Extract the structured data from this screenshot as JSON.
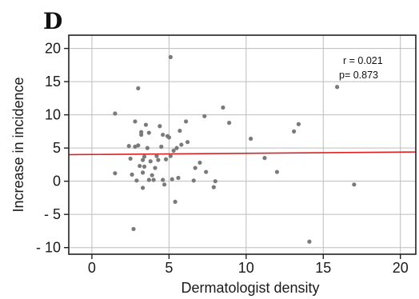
{
  "panel_label": "D",
  "chart_data": {
    "type": "scatter",
    "title": "",
    "xlabel": "Dermatologist density",
    "ylabel": "Increase in incidence",
    "xlim": [
      -1.5,
      21
    ],
    "ylim": [
      -11,
      22
    ],
    "x_ticks": [
      0,
      5,
      10,
      15,
      20
    ],
    "x_tick_labels": [
      "0",
      "5",
      "10",
      "15",
      "20"
    ],
    "y_ticks": [
      -10,
      -5,
      0,
      5,
      10,
      15,
      20
    ],
    "y_tick_labels": [
      "- 10",
      "- 5",
      "0",
      "5",
      "10",
      "15",
      "20"
    ],
    "grid": true,
    "stats": {
      "r_text": "r = 0.021",
      "p_text": "p= 0.873"
    },
    "trendline": {
      "x": [
        -1.5,
        21
      ],
      "y": [
        4.0,
        4.4
      ],
      "color": "#e02020"
    },
    "point_color": "#7a7a7a",
    "points": [
      [
        1.5,
        10.2
      ],
      [
        1.5,
        1.2
      ],
      [
        2.4,
        5.3
      ],
      [
        2.5,
        3.4
      ],
      [
        2.6,
        1.0
      ],
      [
        2.7,
        -7.2
      ],
      [
        2.8,
        9.0
      ],
      [
        2.8,
        5.2
      ],
      [
        2.9,
        0.1
      ],
      [
        3.0,
        5.4
      ],
      [
        3.0,
        14.0
      ],
      [
        3.1,
        2.3
      ],
      [
        3.2,
        7.4
      ],
      [
        3.2,
        7.0
      ],
      [
        3.3,
        3.2
      ],
      [
        3.3,
        1.3
      ],
      [
        3.3,
        -1.0
      ],
      [
        3.4,
        3.7
      ],
      [
        3.4,
        2.2
      ],
      [
        3.5,
        8.5
      ],
      [
        3.6,
        5.0
      ],
      [
        3.7,
        7.3
      ],
      [
        3.7,
        0.2
      ],
      [
        3.8,
        3.0
      ],
      [
        3.9,
        0.9
      ],
      [
        4.0,
        0.2
      ],
      [
        4.1,
        2.0
      ],
      [
        4.2,
        3.8
      ],
      [
        4.3,
        3.2
      ],
      [
        4.4,
        8.3
      ],
      [
        4.5,
        5.2
      ],
      [
        4.6,
        7.0
      ],
      [
        4.6,
        0.2
      ],
      [
        4.7,
        -0.5
      ],
      [
        4.8,
        3.3
      ],
      [
        4.9,
        6.8
      ],
      [
        5.0,
        6.6
      ],
      [
        5.1,
        18.7
      ],
      [
        5.1,
        3.8
      ],
      [
        5.2,
        0.3
      ],
      [
        5.3,
        4.6
      ],
      [
        5.4,
        -3.1
      ],
      [
        5.5,
        5.0
      ],
      [
        5.6,
        0.5
      ],
      [
        5.7,
        7.6
      ],
      [
        5.8,
        5.5
      ],
      [
        6.1,
        9.0
      ],
      [
        6.2,
        5.9
      ],
      [
        6.6,
        0.1
      ],
      [
        6.7,
        2.0
      ],
      [
        7.0,
        2.8
      ],
      [
        7.3,
        9.8
      ],
      [
        7.4,
        1.4
      ],
      [
        7.9,
        -0.9
      ],
      [
        8.0,
        0.0
      ],
      [
        8.5,
        11.1
      ],
      [
        8.9,
        8.8
      ],
      [
        10.3,
        6.4
      ],
      [
        11.2,
        3.5
      ],
      [
        12.0,
        1.4
      ],
      [
        13.1,
        7.5
      ],
      [
        13.4,
        8.6
      ],
      [
        14.1,
        -9.1
      ],
      [
        15.9,
        14.2
      ],
      [
        17.0,
        -0.5
      ]
    ]
  }
}
